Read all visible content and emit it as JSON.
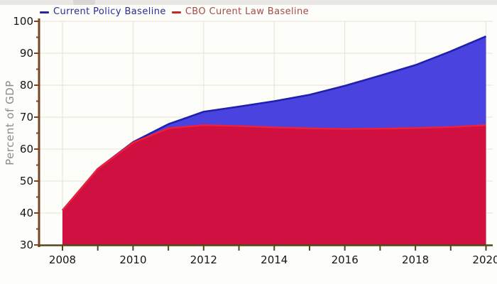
{
  "legend": {
    "items": [
      {
        "label": "Current Policy Baseline",
        "text_color": "#2b2b94",
        "marker_color": "#27279c"
      },
      {
        "label": "CBO Curent Law Baseline",
        "text_color": "#a34c4c",
        "marker_color": "#c62828"
      }
    ]
  },
  "chart_data": {
    "type": "area",
    "title": "",
    "xlabel": "",
    "ylabel": "Percent of GDP",
    "x": [
      2008,
      2009,
      2010,
      2011,
      2012,
      2013,
      2014,
      2015,
      2016,
      2017,
      2018,
      2019,
      2020
    ],
    "series": [
      {
        "name": "Current Policy Baseline",
        "values": [
          40.8,
          53.8,
          62.2,
          67.8,
          71.7,
          73.3,
          75.0,
          77.0,
          79.8,
          83.0,
          86.3,
          90.6,
          95.3
        ],
        "fill": "#4a43e0",
        "line": "#2020ae"
      },
      {
        "name": "CBO Curent Law Baseline",
        "values": [
          40.8,
          53.8,
          62.0,
          66.5,
          67.5,
          67.2,
          66.8,
          66.5,
          66.3,
          66.4,
          66.6,
          66.9,
          67.5
        ],
        "fill": "#cf1040",
        "line": "#ef2038"
      }
    ],
    "xlim": [
      2008,
      2020
    ],
    "ylim": [
      30,
      100
    ],
    "x_ticks": [
      2008,
      2010,
      2012,
      2014,
      2016,
      2018,
      2020
    ],
    "x_minor_ticks_every": 1,
    "y_ticks": [
      30,
      40,
      50,
      60,
      70,
      80,
      90,
      100
    ],
    "y_minor_ticks_every": 5,
    "grid": true,
    "legend_position": "top-left",
    "colors": {
      "grid": "#e8e4d4",
      "y_axis": "#7a4526",
      "x_axis": "#4f481d",
      "tick": "#6b5a28",
      "tick_label": "#161616",
      "plot_bg": "#fdfdf9"
    }
  }
}
